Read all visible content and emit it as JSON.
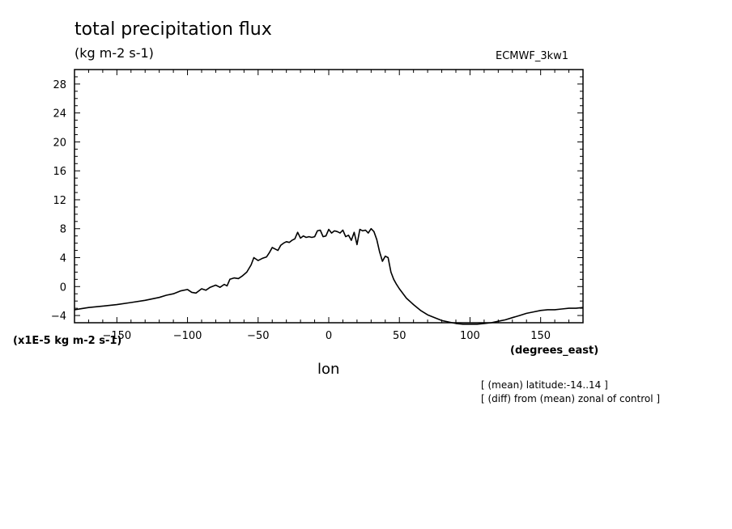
{
  "chart_data": {
    "type": "line",
    "title": "total precipitation flux",
    "subtitle": "(kg m-2 s-1)",
    "dataset": "ECMWF_3kw1",
    "xlabel": "lon",
    "x_units": "(degrees_east)",
    "y_units": "(x1E-5 kg m-2 s-1)",
    "xlim": [
      -180,
      180
    ],
    "ylim": [
      -5,
      30
    ],
    "x_ticks": [
      -150,
      -100,
      -50,
      0,
      50,
      100,
      150
    ],
    "y_ticks": [
      -4,
      0,
      4,
      8,
      12,
      16,
      20,
      24,
      28
    ],
    "grid": false,
    "notes": [
      "[ (mean) latitude:-14..14 ]",
      "[ (diff) from (mean) zonal of control ]"
    ],
    "series": [
      {
        "color": "#000000",
        "x": [
          -180,
          -170,
          -160,
          -150,
          -140,
          -130,
          -120,
          -115,
          -110,
          -105,
          -100,
          -97,
          -94,
          -90,
          -87,
          -84,
          -80,
          -77,
          -74,
          -72,
          -70,
          -67,
          -64,
          -61,
          -58,
          -55,
          -53,
          -50,
          -47,
          -44,
          -42,
          -40,
          -38,
          -36,
          -34,
          -32,
          -30,
          -28,
          -26,
          -24,
          -22,
          -20,
          -18,
          -16,
          -14,
          -12,
          -10,
          -8,
          -6,
          -4,
          -2,
          0,
          2,
          4,
          6,
          8,
          10,
          12,
          14,
          16,
          18,
          20,
          22,
          24,
          26,
          28,
          30,
          32,
          34,
          36,
          38,
          40,
          42,
          44,
          46,
          48,
          50,
          55,
          60,
          65,
          70,
          75,
          80,
          85,
          90,
          95,
          100,
          105,
          110,
          115,
          120,
          125,
          130,
          135,
          140,
          145,
          150,
          155,
          160,
          165,
          170,
          175,
          180
        ],
        "y": [
          -3.2,
          -2.9,
          -2.7,
          -2.5,
          -2.2,
          -1.9,
          -1.5,
          -1.2,
          -1.0,
          -0.6,
          -0.4,
          -0.8,
          -0.9,
          -0.3,
          -0.5,
          -0.1,
          0.2,
          -0.1,
          0.3,
          0.1,
          1.0,
          1.2,
          1.1,
          1.5,
          2.0,
          3.0,
          4.0,
          3.6,
          3.9,
          4.1,
          4.7,
          5.4,
          5.2,
          5.0,
          5.7,
          6.0,
          6.2,
          6.1,
          6.4,
          6.6,
          7.5,
          6.7,
          7.0,
          6.8,
          6.9,
          6.8,
          6.9,
          7.7,
          7.8,
          6.9,
          7.0,
          7.9,
          7.4,
          7.7,
          7.6,
          7.4,
          7.8,
          6.9,
          7.1,
          6.4,
          7.5,
          5.8,
          7.9,
          7.7,
          7.8,
          7.4,
          8.0,
          7.6,
          6.5,
          4.8,
          3.5,
          4.2,
          4.0,
          2.0,
          1.0,
          0.3,
          -0.3,
          -1.6,
          -2.5,
          -3.3,
          -3.9,
          -4.3,
          -4.7,
          -4.9,
          -5.1,
          -5.2,
          -5.2,
          -5.2,
          -5.1,
          -5.0,
          -4.8,
          -4.6,
          -4.3,
          -4.0,
          -3.7,
          -3.5,
          -3.3,
          -3.2,
          -3.2,
          -3.1,
          -3.0,
          -3.0,
          -2.9
        ]
      }
    ]
  }
}
